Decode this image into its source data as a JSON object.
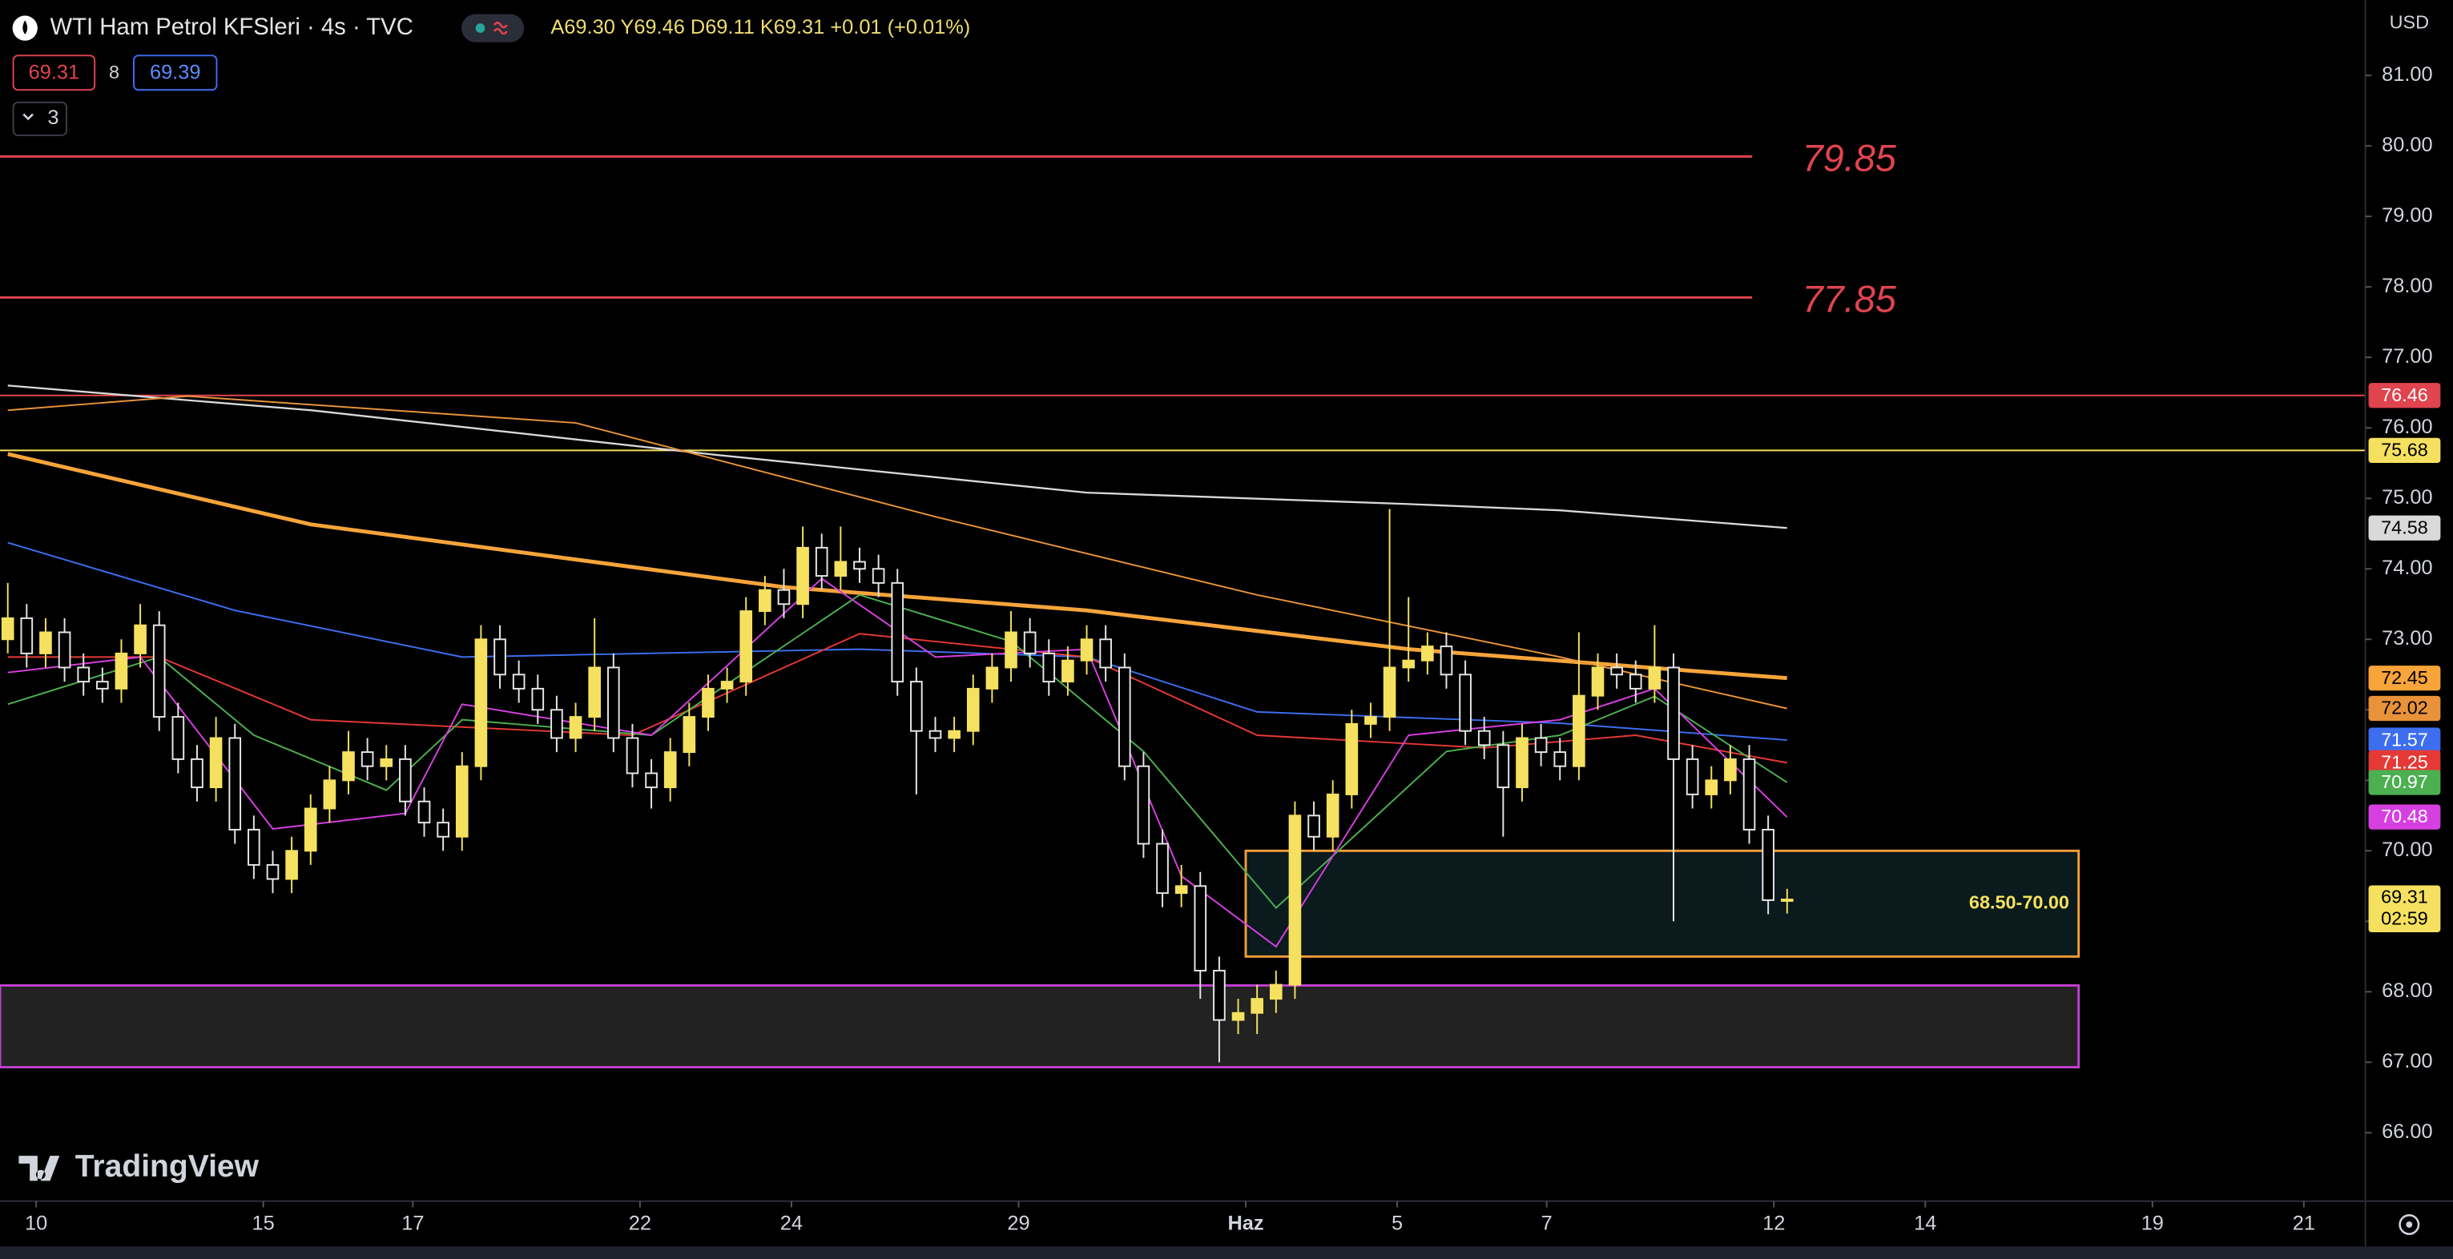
{
  "toolbar": {
    "bid": "69.31",
    "spread": "8",
    "ask": "69.39",
    "indicators": "3"
  },
  "logo": "TradingView",
  "chart_data": {
    "type": "candlestick",
    "title": "WTI Ham Petrol KFSleri · 4s · TVC",
    "ohlc_legend": "A69.30 Y69.46 D69.11 K69.31 +0.01 (+0.01%)",
    "currency": "USD",
    "countdown": "02:59",
    "candles": {
      "up_color": "#f5e15f",
      "down_color": "#e6e6e6",
      "open": [
        73.0,
        73.3,
        72.8,
        73.1,
        72.6,
        72.4,
        72.3,
        72.8,
        73.2,
        71.9,
        71.3,
        70.9,
        71.6,
        70.3,
        69.8,
        69.6,
        70.0,
        70.6,
        71.0,
        71.4,
        71.2,
        71.3,
        70.7,
        70.4,
        70.2,
        71.2,
        73.0,
        72.5,
        72.3,
        72.0,
        71.6,
        71.9,
        72.6,
        71.6,
        71.1,
        70.9,
        71.4,
        71.9,
        72.3,
        72.4,
        73.4,
        73.7,
        73.5,
        74.3,
        73.9,
        74.1,
        74.0,
        73.8,
        72.4,
        71.7,
        71.6,
        71.7,
        72.3,
        72.6,
        73.1,
        72.8,
        72.4,
        72.7,
        73.0,
        72.6,
        71.2,
        70.1,
        69.4,
        69.5,
        68.3,
        67.6,
        67.7,
        67.9,
        68.1,
        70.5,
        70.2,
        70.8,
        71.8,
        71.9,
        72.6,
        72.7,
        72.9,
        72.5,
        71.7,
        71.5,
        70.9,
        71.6,
        71.4,
        71.2,
        72.2,
        72.6,
        72.5,
        72.3,
        72.6,
        71.3,
        70.8,
        71.0,
        71.3,
        70.3,
        69.3
      ],
      "high": [
        73.8,
        73.5,
        73.3,
        73.3,
        72.8,
        72.6,
        73.0,
        73.5,
        73.4,
        72.1,
        71.5,
        71.9,
        71.8,
        70.5,
        70.0,
        70.2,
        70.8,
        71.2,
        71.7,
        71.6,
        71.5,
        71.5,
        70.9,
        70.6,
        71.4,
        73.2,
        73.2,
        72.7,
        72.5,
        72.2,
        72.1,
        73.3,
        72.8,
        71.8,
        71.3,
        71.6,
        72.1,
        72.5,
        72.6,
        73.6,
        73.9,
        74.0,
        74.6,
        74.5,
        74.6,
        74.3,
        74.2,
        74.0,
        72.6,
        71.9,
        71.9,
        72.5,
        72.8,
        73.4,
        73.3,
        73.0,
        72.9,
        73.2,
        73.2,
        72.8,
        71.4,
        70.3,
        69.8,
        69.7,
        68.5,
        67.9,
        68.1,
        68.3,
        70.7,
        70.7,
        71.0,
        72.0,
        72.1,
        74.85,
        73.6,
        73.1,
        73.1,
        72.7,
        71.9,
        71.7,
        71.8,
        71.8,
        71.6,
        73.1,
        72.8,
        72.8,
        72.7,
        73.2,
        72.8,
        71.5,
        71.2,
        71.5,
        71.5,
        70.5,
        69.46
      ],
      "low": [
        72.8,
        72.6,
        72.6,
        72.4,
        72.2,
        72.1,
        72.1,
        72.6,
        71.7,
        71.1,
        70.7,
        70.7,
        70.1,
        69.6,
        69.4,
        69.4,
        69.8,
        70.4,
        70.8,
        71.0,
        71.0,
        70.5,
        70.2,
        70.0,
        70.0,
        71.0,
        72.3,
        72.1,
        71.8,
        71.4,
        71.4,
        71.7,
        71.4,
        70.9,
        70.6,
        70.7,
        71.2,
        71.7,
        72.1,
        72.2,
        73.2,
        73.3,
        73.3,
        73.7,
        73.7,
        73.8,
        73.6,
        72.2,
        70.8,
        71.4,
        71.4,
        71.5,
        72.1,
        72.4,
        72.6,
        72.2,
        72.2,
        72.5,
        72.4,
        71.0,
        69.9,
        69.2,
        69.2,
        67.9,
        67.0,
        67.4,
        67.4,
        67.7,
        67.9,
        70.0,
        70.0,
        70.6,
        71.6,
        71.7,
        72.4,
        72.5,
        72.3,
        71.5,
        71.3,
        70.2,
        70.7,
        71.2,
        71.0,
        71.0,
        72.0,
        72.3,
        72.1,
        72.1,
        69.0,
        70.6,
        70.6,
        70.8,
        70.1,
        69.1,
        69.11
      ],
      "close": [
        73.3,
        72.8,
        73.1,
        72.6,
        72.4,
        72.3,
        72.8,
        73.2,
        71.9,
        71.3,
        70.9,
        71.6,
        70.3,
        69.8,
        69.6,
        70.0,
        70.6,
        71.0,
        71.4,
        71.2,
        71.3,
        70.7,
        70.4,
        70.2,
        71.2,
        73.0,
        72.5,
        72.3,
        72.0,
        71.6,
        71.9,
        72.6,
        71.6,
        71.1,
        70.9,
        71.4,
        71.9,
        72.3,
        72.4,
        73.4,
        73.7,
        73.5,
        74.3,
        73.9,
        74.1,
        74.0,
        73.8,
        72.4,
        71.7,
        71.6,
        71.7,
        72.3,
        72.6,
        73.1,
        72.8,
        72.4,
        72.7,
        73.0,
        72.6,
        71.2,
        70.1,
        69.4,
        69.5,
        68.3,
        67.6,
        67.7,
        67.9,
        68.1,
        70.5,
        70.2,
        70.8,
        71.8,
        71.9,
        72.6,
        72.7,
        72.9,
        72.5,
        71.7,
        71.5,
        70.9,
        71.6,
        71.4,
        71.2,
        72.2,
        72.6,
        72.5,
        72.3,
        72.6,
        71.3,
        70.8,
        71.0,
        71.3,
        70.3,
        69.3,
        69.31
      ]
    },
    "series": [
      {
        "color": "#d9d9d9",
        "width": 1.2,
        "x": [
          0,
          16,
          37,
          57,
          74,
          82,
          94
        ],
        "values": [
          76.6,
          76.25,
          75.63,
          75.08,
          74.92,
          74.83,
          74.58
        ]
      },
      {
        "color": "#f7a43a",
        "width": 2.5,
        "x": [
          0,
          16,
          41,
          57,
          74,
          94
        ],
        "values": [
          75.63,
          74.63,
          73.74,
          73.41,
          72.86,
          72.45
        ]
      },
      {
        "color": "#e8923a",
        "width": 1,
        "x": [
          0,
          9.5,
          30,
          49,
          66,
          82,
          94
        ],
        "values": [
          76.25,
          76.45,
          76.07,
          74.74,
          73.63,
          72.75,
          72.02
        ]
      },
      {
        "color": "#3d6ef0",
        "width": 1,
        "x": [
          0,
          12,
          24,
          45,
          57,
          66,
          82,
          94
        ],
        "values": [
          74.37,
          73.41,
          72.75,
          72.86,
          72.75,
          71.97,
          71.81,
          71.57
        ]
      },
      {
        "color": "#e53935",
        "width": 1,
        "x": [
          0,
          8,
          16,
          33,
          45,
          57,
          66,
          78,
          86,
          94
        ],
        "values": [
          72.75,
          72.75,
          71.86,
          71.64,
          73.08,
          72.75,
          71.64,
          71.46,
          71.64,
          71.25
        ]
      },
      {
        "color": "#4caf50",
        "width": 1,
        "x": [
          0,
          8,
          13,
          20,
          24,
          34,
          45,
          53,
          60,
          67,
          76,
          82,
          87,
          94
        ],
        "values": [
          72.08,
          72.75,
          71.64,
          70.86,
          71.86,
          71.64,
          73.63,
          72.97,
          71.41,
          69.19,
          71.41,
          71.64,
          72.19,
          70.97
        ]
      },
      {
        "color": "#d63fe0",
        "width": 1,
        "x": [
          0,
          7,
          14,
          21,
          24,
          34,
          43,
          49,
          57,
          62,
          67,
          74,
          82,
          87,
          94
        ],
        "values": [
          72.53,
          72.75,
          70.31,
          70.53,
          72.08,
          71.64,
          73.86,
          72.75,
          72.86,
          69.64,
          68.64,
          71.64,
          71.86,
          72.3,
          70.48
        ]
      }
    ],
    "hlines": [
      {
        "value": 79.85,
        "color": "#e0444f",
        "style": "text"
      },
      {
        "value": 77.85,
        "color": "#e0444f",
        "style": "text"
      },
      {
        "value": 76.46,
        "color": "#e0444f",
        "style": "badge"
      },
      {
        "value": 75.68,
        "color": "#f5e15f",
        "style": "badge"
      }
    ],
    "zones": [
      {
        "low": 68.5,
        "high": 70.0,
        "x": [
          65.4,
          109.4
        ],
        "fill": "#0a1a1d",
        "border": "#f29c38",
        "label": "68.50-70.00"
      },
      {
        "low": 66.93,
        "high": 68.09,
        "x": [
          -0.41,
          109.4
        ],
        "fill": "#222222",
        "border": "#c040d0"
      }
    ],
    "xlim": [
      -0.41,
      124.55
    ],
    "xticks": [
      {
        "value": 1.5,
        "label": "10"
      },
      {
        "value": 13.5,
        "label": "15"
      },
      {
        "value": 21.4,
        "label": "17"
      },
      {
        "value": 33.4,
        "label": "22"
      },
      {
        "value": 41.4,
        "label": "24"
      },
      {
        "value": 53.4,
        "label": "29"
      },
      {
        "value": 65.4,
        "label": "Haz"
      },
      {
        "value": 73.4,
        "label": "5"
      },
      {
        "value": 81.3,
        "label": "7"
      },
      {
        "value": 93.3,
        "label": "12"
      },
      {
        "value": 101.3,
        "label": "14"
      },
      {
        "value": 113.3,
        "label": "19"
      },
      {
        "value": 121.3,
        "label": "21"
      }
    ],
    "ylim": [
      65.03,
      82.07
    ],
    "yticks": [
      {
        "value": 66,
        "label": "66.00"
      },
      {
        "value": 67,
        "label": "67.00"
      },
      {
        "value": 68,
        "label": "68.00"
      },
      {
        "value": 69,
        "label": "69.00"
      },
      {
        "value": 70,
        "label": "70.00"
      },
      {
        "value": 71,
        "label": "71.00"
      },
      {
        "value": 72,
        "label": "72.00"
      },
      {
        "value": 73,
        "label": "73.00"
      },
      {
        "value": 74,
        "label": "74.00"
      },
      {
        "value": 75,
        "label": "75.00"
      },
      {
        "value": 76,
        "label": "76.00"
      },
      {
        "value": 77,
        "label": "77.00"
      },
      {
        "value": 78,
        "label": "78.00"
      },
      {
        "value": 79,
        "label": "79.00"
      },
      {
        "value": 80,
        "label": "80.00"
      },
      {
        "value": 81,
        "label": "81.00"
      }
    ]
  }
}
